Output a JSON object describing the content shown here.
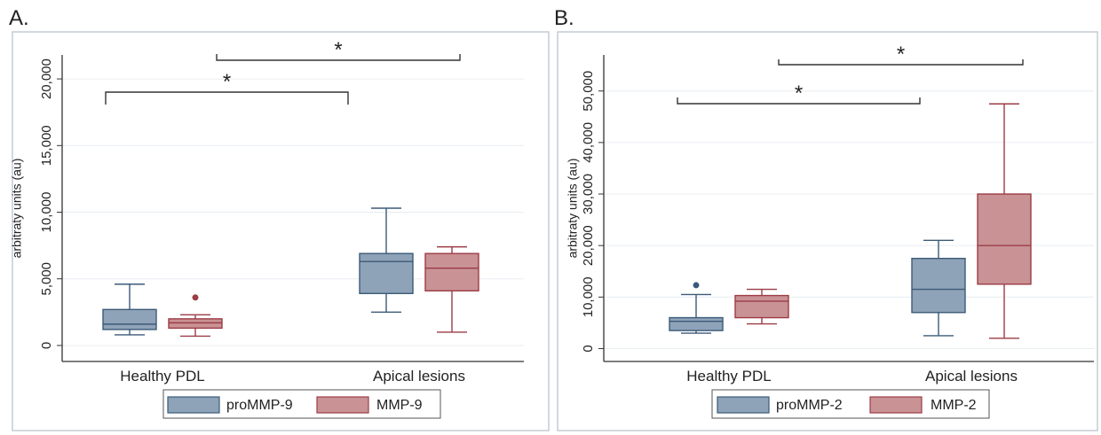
{
  "chart_data": [
    {
      "type": "box",
      "panel_label": "A.",
      "ylabel": "arbitraty units (au)",
      "ylim": [
        -1200,
        21800
      ],
      "yticks": [
        0,
        5000,
        10000,
        15000,
        20000
      ],
      "ytick_labels": [
        "0",
        "5,000",
        "10,000",
        "15,000",
        "20,000"
      ],
      "categories": [
        "Healthy PDL",
        "Apical lesions"
      ],
      "grid": true,
      "legend_position": "bottom",
      "series": [
        {
          "name": "proMMP-9",
          "color": "#8fa3b8",
          "stroke": "#3b5a78",
          "boxes": [
            {
              "category": "Healthy PDL",
              "whisker_low": 800,
              "q1": 1200,
              "median": 1600,
              "q3": 2700,
              "whisker_high": 4600,
              "outliers": []
            },
            {
              "category": "Apical lesions",
              "whisker_low": 2500,
              "q1": 3900,
              "median": 6300,
              "q3": 6900,
              "whisker_high": 10300,
              "outliers": []
            }
          ]
        },
        {
          "name": "MMP-9",
          "color": "#c99295",
          "stroke": "#9c3c46",
          "boxes": [
            {
              "category": "Healthy PDL",
              "whisker_low": 700,
              "q1": 1300,
              "median": 1700,
              "q3": 2000,
              "whisker_high": 2300,
              "outliers": [
                3600
              ]
            },
            {
              "category": "Apical lesions",
              "whisker_low": 1000,
              "q1": 4100,
              "median": 5800,
              "q3": 6900,
              "whisker_high": 7400,
              "outliers": []
            }
          ]
        }
      ],
      "annotations": [
        {
          "text": "*",
          "from": "Healthy PDL / proMMP-9",
          "to": "Apical lesions / proMMP-9",
          "y": 18500
        },
        {
          "text": "*",
          "from": "Healthy PDL / MMP-9",
          "to": "Apical lesions / MMP-9",
          "y": 21500
        }
      ]
    },
    {
      "type": "box",
      "panel_label": "B.",
      "ylabel": "arbitraty units (au)",
      "ylim": [
        -2500,
        57000
      ],
      "yticks": [
        0,
        10000,
        20000,
        30000,
        40000,
        50000
      ],
      "ytick_labels": [
        "0",
        "10,000",
        "20,000",
        "30,000",
        "40,000",
        "50,000"
      ],
      "categories": [
        "Healthy PDL",
        "Apical lesions"
      ],
      "grid": true,
      "legend_position": "bottom",
      "series": [
        {
          "name": "proMMP-2",
          "color": "#8fa3b8",
          "stroke": "#3b5a78",
          "boxes": [
            {
              "category": "Healthy PDL",
              "whisker_low": 3000,
              "q1": 3500,
              "median": 5300,
              "q3": 6000,
              "whisker_high": 10500,
              "outliers": [
                12300
              ]
            },
            {
              "category": "Apical lesions",
              "whisker_low": 2500,
              "q1": 7000,
              "median": 11500,
              "q3": 17500,
              "whisker_high": 21000,
              "outliers": []
            }
          ]
        },
        {
          "name": "MMP-2",
          "color": "#c99295",
          "stroke": "#9c3c46",
          "boxes": [
            {
              "category": "Healthy PDL",
              "whisker_low": 4800,
              "q1": 6000,
              "median": 9200,
              "q3": 10300,
              "whisker_high": 11500,
              "outliers": []
            },
            {
              "category": "Apical lesions",
              "whisker_low": 2000,
              "q1": 12500,
              "median": 20000,
              "q3": 30000,
              "whisker_high": 47500,
              "outliers": []
            }
          ]
        }
      ],
      "annotations": [
        {
          "text": "*",
          "from": "Healthy PDL / proMMP-2",
          "to": "Apical lesions / proMMP-2",
          "y": 45500
        },
        {
          "text": "*",
          "from": "Healthy PDL / MMP-2",
          "to": "Apical lesions / MMP-2",
          "y": 52500
        }
      ]
    }
  ]
}
